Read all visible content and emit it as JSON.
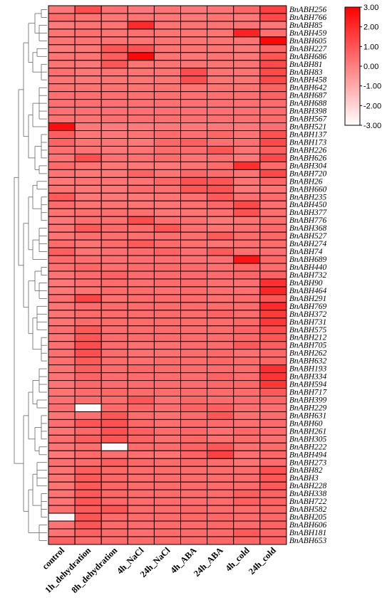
{
  "chart_data": {
    "type": "heatmap",
    "title": "",
    "xlabel": "",
    "ylabel": "",
    "x_categories": [
      "control",
      "1h_dehydration",
      "8h_dehydration",
      "4h_NaCl",
      "24h_NaCl",
      "4h_ABA",
      "24h_ABA",
      "4h_cold",
      "24h_cold"
    ],
    "y_categories": [
      "BnABH256",
      "BnABH766",
      "BnABH85",
      "BnABH459",
      "BnABH605",
      "BnABH227",
      "BnABH686",
      "BnABH81",
      "BnABH83",
      "BnABH458",
      "BnABH642",
      "BnABH687",
      "BnABH688",
      "BnABH398",
      "BnABH567",
      "BnABH521",
      "BnABH137",
      "BnABH173",
      "BnABH226",
      "BnABH626",
      "BnABH304",
      "BnABH720",
      "BnABH26",
      "BnABH660",
      "BnABH235",
      "BnABH450",
      "BnABH377",
      "BnABH776",
      "BnABH368",
      "BnABH527",
      "BnABH274",
      "BnABH74",
      "BnABH689",
      "BnABH440",
      "BnABH732",
      "BnABH90",
      "BnABH464",
      "BnABH291",
      "BnABH769",
      "BnABH372",
      "BnABH731",
      "BnABH575",
      "BnABH212",
      "BnABH705",
      "BnABH262",
      "BnABH632",
      "BnABH193",
      "BnABH334",
      "BnABH594",
      "BnABH717",
      "BnABH399",
      "BnABH229",
      "BnABH631",
      "BnABH60",
      "BnABH261",
      "BnABH305",
      "BnABH222",
      "BnABH494",
      "BnABH273",
      "BnABH82",
      "BnABH3",
      "BnABH228",
      "BnABH338",
      "BnABH722",
      "BnABH582",
      "BnABH205",
      "BnABH606",
      "BnABH181",
      "BnABH653"
    ],
    "values": [
      [
        0.2,
        1.2,
        0.4,
        0.2,
        0.3,
        0.2,
        0.3,
        0.6,
        1.5
      ],
      [
        0.5,
        0.3,
        0.2,
        0.3,
        0.2,
        0.2,
        0.3,
        0.2,
        1.3
      ],
      [
        0.1,
        0.3,
        0.3,
        2.0,
        0.3,
        0.3,
        0.3,
        0.3,
        0.2
      ],
      [
        0.3,
        0.4,
        0.3,
        0.4,
        0.3,
        0.3,
        0.3,
        2.2,
        0.4
      ],
      [
        0.3,
        0.3,
        0.3,
        0.3,
        0.3,
        0.3,
        0.3,
        0.3,
        2.8
      ],
      [
        0.1,
        0.2,
        1.0,
        1.1,
        0.3,
        0.3,
        0.3,
        0.2,
        0.6
      ],
      [
        0.3,
        0.3,
        0.8,
        2.8,
        0.3,
        0.2,
        0.3,
        0.2,
        1.0
      ],
      [
        0.3,
        0.2,
        1.0,
        0.3,
        0.3,
        0.3,
        0.3,
        0.3,
        1.3
      ],
      [
        0.4,
        0.2,
        0.3,
        0.3,
        0.3,
        1.2,
        0.3,
        0.3,
        1.3
      ],
      [
        0.3,
        0.2,
        0.3,
        0.3,
        0.3,
        1.2,
        0.3,
        0.3,
        1.3
      ],
      [
        0.3,
        0.3,
        0.3,
        0.3,
        0.3,
        0.3,
        0.3,
        0.3,
        0.7
      ],
      [
        0.4,
        0.4,
        0.4,
        0.4,
        0.4,
        0.4,
        0.4,
        0.4,
        0.7
      ],
      [
        0.4,
        0.4,
        0.4,
        0.4,
        0.4,
        0.4,
        0.4,
        0.4,
        0.5
      ],
      [
        0.4,
        0.4,
        0.4,
        0.4,
        0.4,
        0.4,
        0.4,
        0.4,
        0.5
      ],
      [
        0.3,
        0.3,
        0.4,
        0.4,
        0.4,
        0.4,
        0.4,
        0.4,
        0.5
      ],
      [
        2.7,
        0.2,
        0.1,
        0.1,
        0.2,
        0.2,
        0.2,
        0.2,
        0.4
      ],
      [
        0.8,
        0.2,
        0.2,
        0.3,
        0.5,
        0.4,
        0.6,
        0.3,
        1.1
      ],
      [
        0.7,
        0.3,
        0.3,
        0.2,
        0.6,
        0.8,
        0.4,
        0.4,
        1.3
      ],
      [
        0.4,
        0.3,
        0.2,
        0.3,
        0.5,
        0.5,
        1.0,
        0.3,
        0.8
      ],
      [
        0.3,
        1.2,
        0.4,
        0.4,
        0.5,
        0.3,
        0.4,
        0.2,
        1.3
      ],
      [
        0.5,
        0.3,
        0.2,
        0.2,
        0.2,
        0.3,
        0.5,
        1.9,
        0.5
      ],
      [
        0.3,
        0.2,
        0.2,
        0.7,
        0.3,
        0.6,
        0.5,
        0.3,
        1.3
      ],
      [
        0.2,
        0.3,
        0.3,
        0.3,
        0.6,
        1.1,
        1.0,
        0.3,
        0.6
      ],
      [
        0.3,
        0.2,
        0.2,
        0.5,
        0.4,
        1.0,
        1.1,
        0.2,
        0.3
      ],
      [
        0.9,
        0.2,
        0.2,
        0.2,
        0.3,
        0.4,
        0.9,
        0.4,
        0.5
      ],
      [
        0.5,
        0.3,
        0.3,
        0.3,
        0.3,
        0.4,
        0.6,
        1.3,
        0.4
      ],
      [
        0.3,
        0.4,
        0.4,
        0.4,
        0.2,
        0.3,
        0.4,
        1.1,
        0.4
      ],
      [
        0.2,
        0.4,
        0.4,
        1.2,
        0.4,
        0.4,
        0.2,
        0.3,
        0.4
      ],
      [
        0.3,
        0.9,
        0.5,
        0.5,
        1.0,
        0.4,
        0.3,
        0.4,
        0.5
      ],
      [
        0.3,
        0.4,
        0.4,
        0.4,
        0.4,
        0.4,
        0.9,
        0.5,
        0.6
      ],
      [
        0.5,
        0.3,
        0.5,
        0.9,
        0.5,
        0.4,
        0.3,
        0.4,
        0.5
      ],
      [
        0.8,
        0.3,
        0.4,
        0.5,
        0.7,
        0.4,
        0.9,
        0.4,
        0.4
      ],
      [
        0.5,
        0.4,
        0.4,
        0.4,
        0.4,
        0.4,
        0.4,
        2.5,
        0.6
      ],
      [
        0.4,
        0.6,
        0.4,
        0.5,
        0.5,
        0.5,
        0.4,
        0.6,
        0.5
      ],
      [
        0.3,
        0.5,
        0.7,
        0.5,
        0.5,
        0.5,
        0.5,
        0.6,
        0.7
      ],
      [
        0.2,
        0.4,
        0.5,
        0.4,
        0.5,
        0.5,
        0.4,
        0.4,
        1.9
      ],
      [
        0.2,
        0.3,
        0.5,
        0.5,
        0.4,
        0.5,
        0.4,
        0.4,
        2.1
      ],
      [
        0.4,
        1.4,
        0.4,
        0.5,
        0.5,
        0.5,
        0.4,
        0.5,
        1.0
      ],
      [
        0.3,
        0.5,
        0.5,
        0.5,
        0.5,
        0.5,
        0.5,
        0.5,
        2.0
      ],
      [
        0.3,
        0.5,
        0.5,
        0.5,
        0.5,
        0.5,
        0.7,
        0.5,
        1.6
      ],
      [
        0.3,
        0.5,
        0.5,
        0.5,
        0.5,
        0.5,
        0.5,
        0.6,
        1.7
      ],
      [
        0.4,
        0.9,
        0.5,
        0.5,
        0.5,
        0.5,
        0.5,
        0.7,
        1.2
      ],
      [
        0.3,
        1.0,
        0.5,
        0.5,
        0.5,
        0.5,
        0.5,
        0.6,
        1.0
      ],
      [
        0.4,
        1.2,
        0.5,
        0.4,
        0.4,
        0.5,
        0.5,
        0.9,
        0.8
      ],
      [
        0.4,
        1.2,
        0.5,
        0.4,
        0.4,
        0.5,
        0.6,
        0.4,
        0.6
      ],
      [
        0.4,
        0.9,
        0.5,
        0.4,
        0.5,
        0.5,
        0.6,
        0.5,
        0.6
      ],
      [
        0.3,
        0.8,
        0.5,
        0.6,
        0.5,
        0.5,
        0.5,
        0.5,
        1.9
      ],
      [
        0.3,
        0.7,
        0.5,
        0.5,
        0.5,
        0.5,
        0.7,
        0.5,
        1.8
      ],
      [
        0.3,
        0.6,
        0.5,
        0.5,
        0.5,
        0.5,
        0.6,
        0.6,
        1.7
      ],
      [
        0.3,
        0.5,
        0.6,
        0.5,
        0.5,
        0.5,
        0.5,
        0.5,
        0.9
      ],
      [
        0.4,
        0.5,
        0.5,
        1.0,
        0.4,
        0.6,
        0.5,
        0.5,
        0.6
      ],
      [
        0.4,
        -2.9,
        0.5,
        0.6,
        0.4,
        0.7,
        0.8,
        0.4,
        0.4
      ],
      [
        0.3,
        0.4,
        1.0,
        0.5,
        0.4,
        0.5,
        1.0,
        0.4,
        0.5
      ],
      [
        0.4,
        1.0,
        1.1,
        0.6,
        0.4,
        0.5,
        0.5,
        0.4,
        0.5
      ],
      [
        0.3,
        0.6,
        1.1,
        0.8,
        0.5,
        0.6,
        0.4,
        0.6,
        0.5
      ],
      [
        0.4,
        0.8,
        1.0,
        0.7,
        0.4,
        0.6,
        0.4,
        0.5,
        0.4
      ],
      [
        0.3,
        0.4,
        -2.9,
        0.5,
        0.5,
        0.7,
        1.0,
        0.4,
        0.5
      ],
      [
        0.2,
        0.5,
        0.4,
        0.4,
        0.3,
        0.7,
        1.5,
        0.4,
        0.6
      ],
      [
        0.4,
        0.5,
        0.8,
        0.6,
        0.5,
        0.6,
        0.5,
        0.3,
        0.5
      ],
      [
        0.3,
        0.8,
        0.6,
        0.5,
        0.5,
        0.5,
        0.5,
        0.5,
        1.1
      ],
      [
        0.3,
        0.9,
        0.6,
        0.5,
        0.5,
        0.5,
        0.5,
        0.5,
        1.0
      ],
      [
        0.3,
        0.9,
        0.6,
        0.5,
        0.5,
        0.5,
        0.5,
        0.5,
        0.9
      ],
      [
        0.3,
        0.9,
        0.6,
        0.5,
        0.5,
        0.5,
        0.5,
        0.8,
        0.7
      ],
      [
        0.3,
        1.0,
        0.6,
        0.5,
        0.5,
        0.5,
        0.5,
        0.8,
        0.7
      ],
      [
        0.4,
        0.9,
        1.0,
        0.5,
        0.5,
        0.6,
        0.5,
        0.5,
        0.6
      ],
      [
        -2.8,
        1.0,
        0.5,
        0.5,
        0.5,
        0.6,
        0.6,
        0.5,
        0.6
      ],
      [
        0.3,
        1.0,
        0.5,
        0.5,
        0.5,
        0.5,
        0.6,
        0.5,
        0.7
      ],
      [
        0.3,
        0.7,
        0.5,
        0.4,
        0.5,
        0.5,
        0.5,
        0.9,
        0.6
      ],
      [
        0.7,
        0.5,
        0.5,
        0.5,
        0.5,
        0.5,
        0.6,
        0.6,
        0.7
      ]
    ],
    "color_scale": {
      "min": -3.0,
      "max": 3.0,
      "ticks": [
        "3.00",
        "2.00",
        "1.00",
        "0.00",
        "-1.00",
        "-2.00",
        "-3.00"
      ],
      "low_color": "#ffffff",
      "high_color": "#ff0000"
    },
    "dendrogram": "row dendrogram on left",
    "grid": true,
    "legend": "top-right"
  }
}
